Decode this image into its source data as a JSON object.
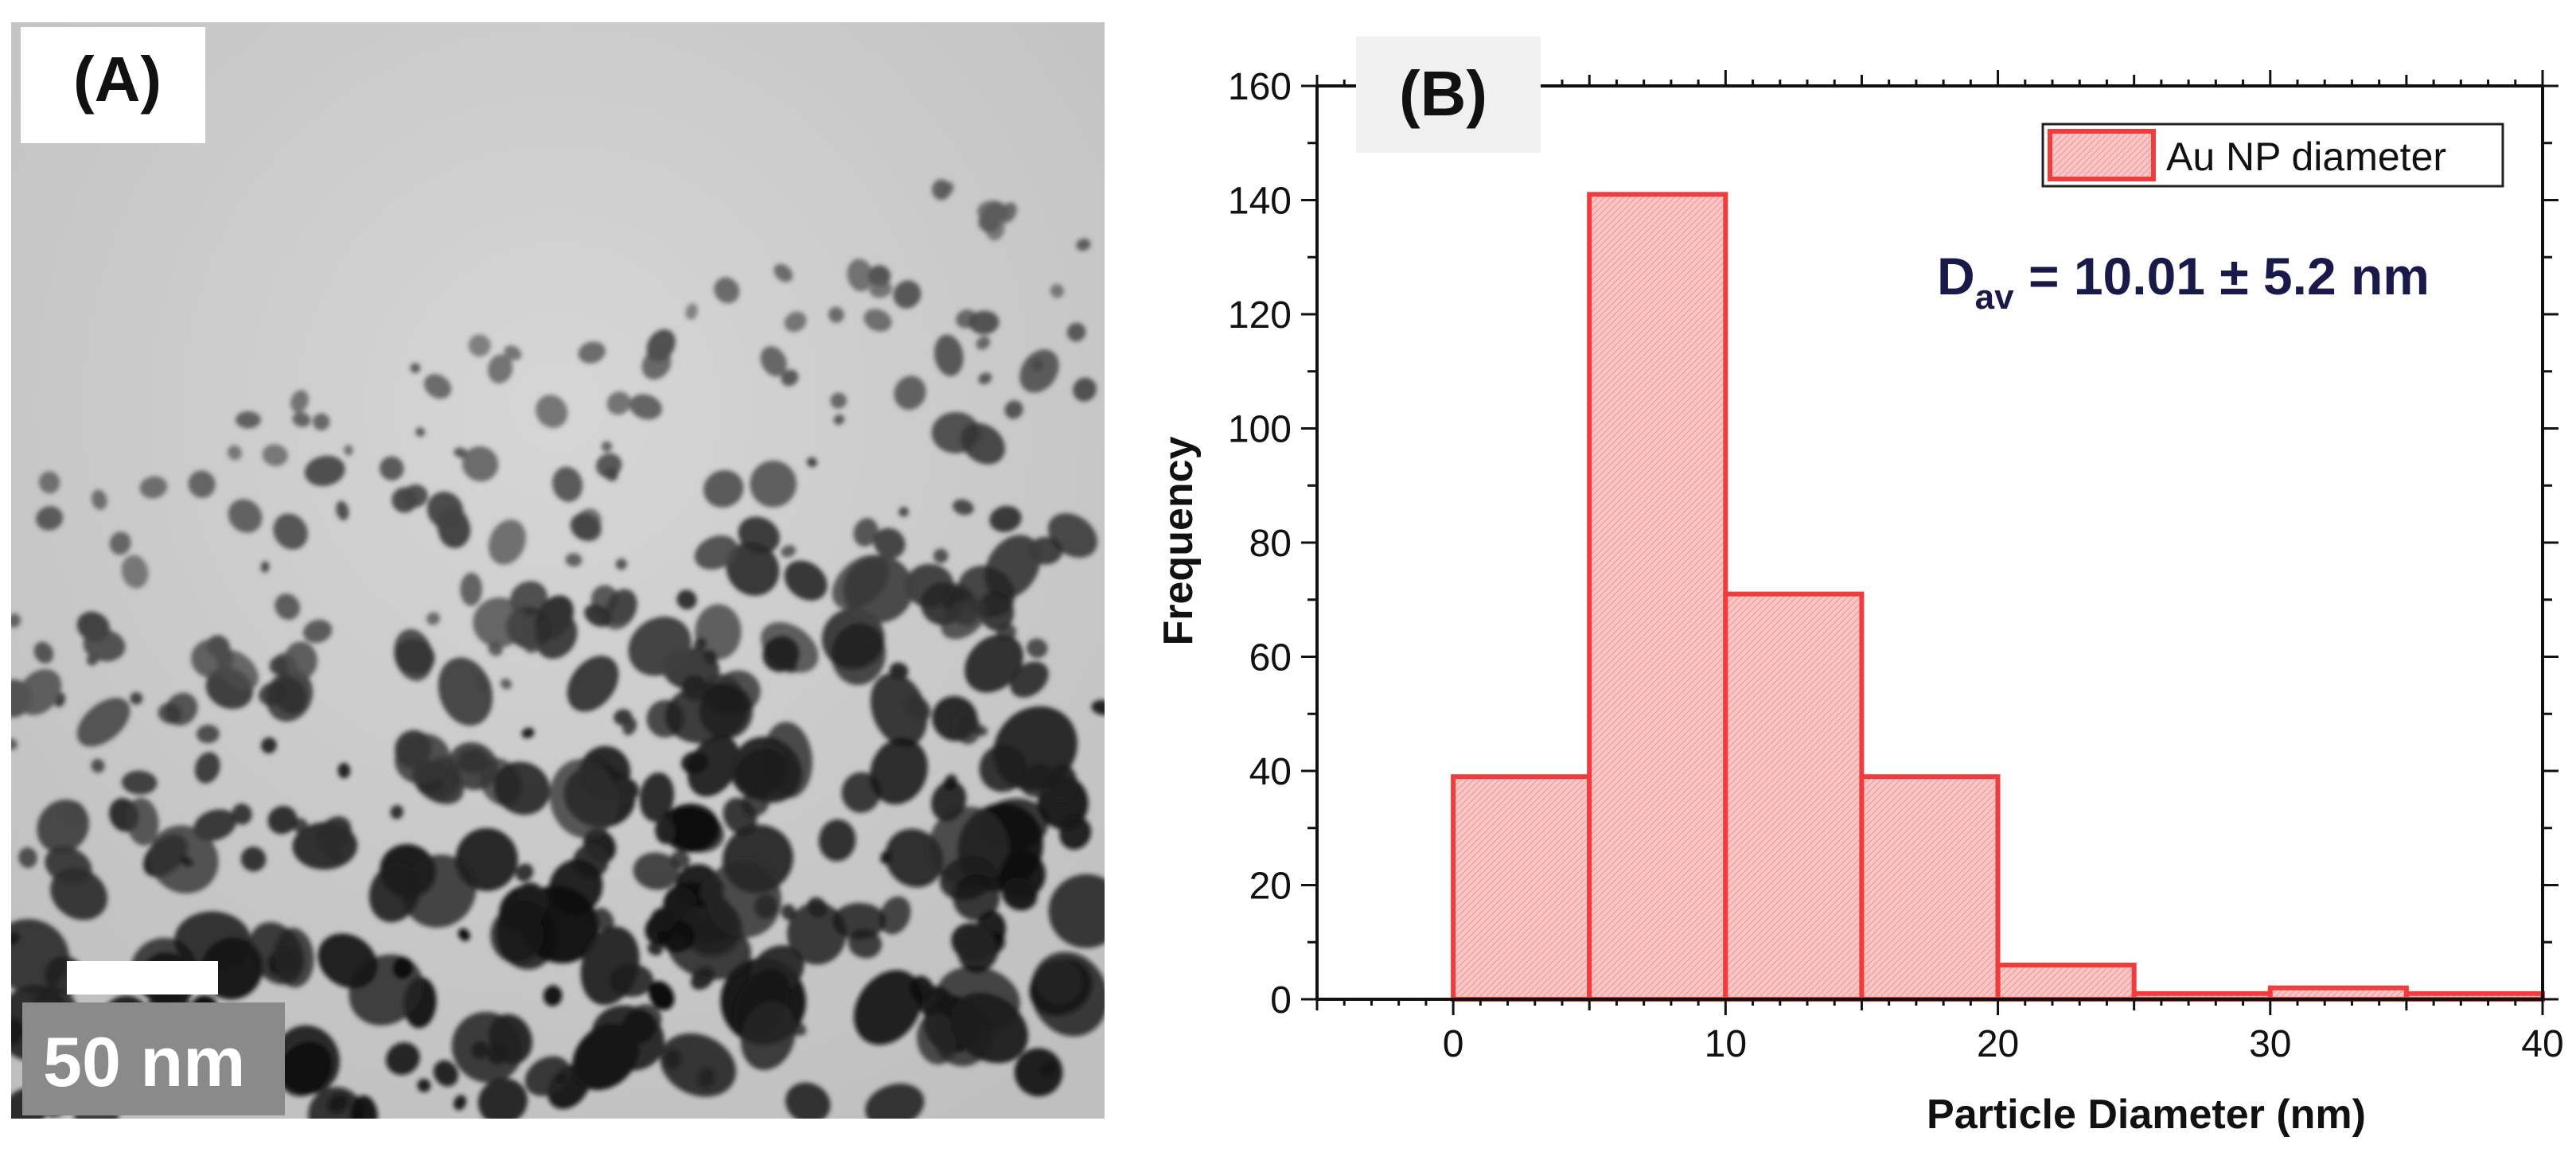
{
  "panel_a": {
    "label": "(A)",
    "scale_bar_text": "50 nm",
    "background_color": "#cfcfcf",
    "particle_color": "#3a3a3a"
  },
  "panel_b": {
    "label": "(B)",
    "annotation": {
      "main": "D",
      "subscript": "av",
      "suffix": " = 10.01 ± 5.2 nm",
      "color": "#1a1a4a"
    }
  },
  "chart_data": {
    "type": "bar",
    "subtype": "histogram",
    "bins": [
      [
        0,
        5
      ],
      [
        5,
        10
      ],
      [
        10,
        15
      ],
      [
        15,
        20
      ],
      [
        20,
        25
      ],
      [
        25,
        30
      ],
      [
        30,
        35
      ],
      [
        35,
        40
      ]
    ],
    "values": [
      39,
      141,
      71,
      39,
      6,
      1,
      2,
      1
    ],
    "xlabel": "Particle Diameter (nm)",
    "ylabel": "Frequency",
    "xlim": [
      -5,
      40
    ],
    "ylim": [
      0,
      160
    ],
    "xticks": [
      0,
      10,
      20,
      30,
      40
    ],
    "yticks": [
      0,
      20,
      40,
      60,
      80,
      100,
      120,
      140,
      160
    ],
    "grid": false,
    "legend_position": "top-right",
    "series": [
      {
        "name": "Au NP diameter",
        "fill_color": "#f7c6c6",
        "edge_color": "#f03c3c"
      }
    ]
  }
}
